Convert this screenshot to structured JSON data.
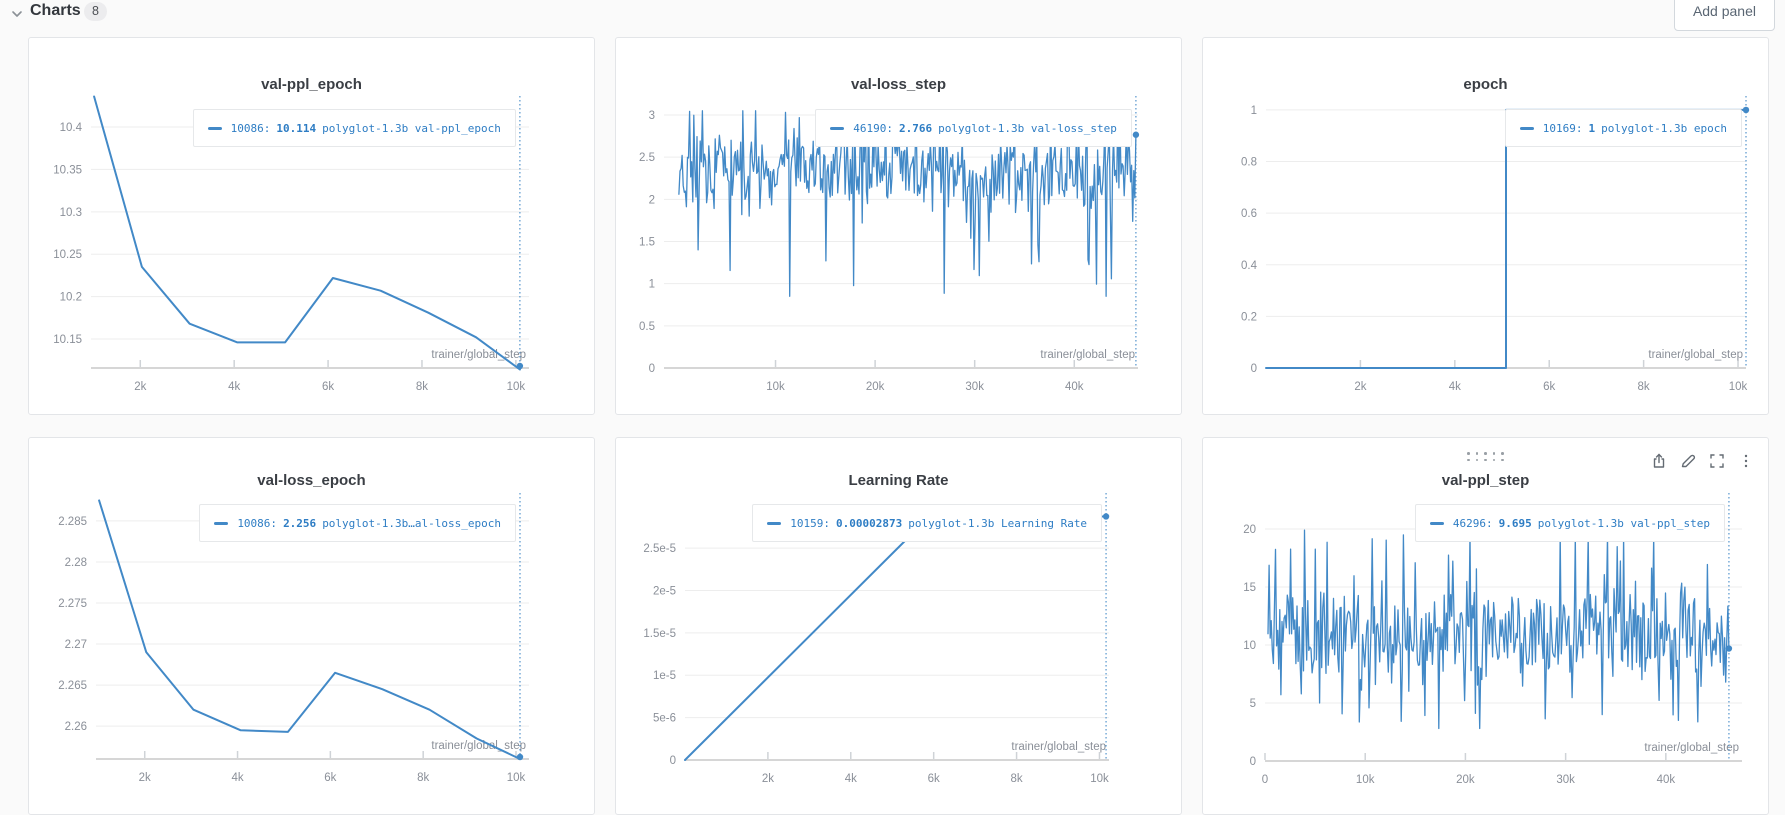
{
  "header": {
    "title": "Charts",
    "count": "8",
    "add_panel_label": "Add panel"
  },
  "colors": {
    "line_blue": "#4289c7",
    "legend_blue": "#2e7dc4",
    "tick_gray": "#8a8f98",
    "grid_gray": "#ededed",
    "axis_gray": "#d6d6d6",
    "page_bg": "#fafafa",
    "panel_bg": "#ffffff"
  },
  "chart_data": [
    {
      "type": "line",
      "title": "val-ppl_epoch",
      "xlabel": "trainer/global_step",
      "legend": {
        "step": "10086:",
        "value": "10.114",
        "run": "polyglot-1.3b val-ppl_epoch"
      },
      "x_range": [
        950,
        10280
      ],
      "y_range": [
        10.1158,
        10.4366
      ],
      "yticks": [
        {
          "v": 10.4,
          "label": "10.4"
        },
        {
          "v": 10.35,
          "label": "10.35"
        },
        {
          "v": 10.3,
          "label": "10.3"
        },
        {
          "v": 10.25,
          "label": "10.25"
        },
        {
          "v": 10.2,
          "label": "10.2"
        },
        {
          "v": 10.15,
          "label": "10.15"
        }
      ],
      "xticks": [
        {
          "v": 2000,
          "label": "2k"
        },
        {
          "v": 4000,
          "label": "4k"
        },
        {
          "v": 6000,
          "label": "6k"
        },
        {
          "v": 8000,
          "label": "8k"
        },
        {
          "v": 10000,
          "label": "10k"
        }
      ],
      "series": {
        "kind": "points",
        "points": [
          [
            1017,
            10.436
          ],
          [
            2034,
            10.235
          ],
          [
            3051,
            10.168
          ],
          [
            4068,
            10.146
          ],
          [
            5085,
            10.146
          ],
          [
            6102,
            10.222
          ],
          [
            7119,
            10.207
          ],
          [
            8136,
            10.181
          ],
          [
            9153,
            10.152
          ],
          [
            10086,
            10.114
          ]
        ]
      },
      "endpoint": {
        "x": 10086,
        "y": 10.114
      }
    },
    {
      "type": "line",
      "title": "val-loss_step",
      "xlabel": "trainer/global_step",
      "legend": {
        "step": "46190:",
        "value": "2.766",
        "run": "polyglot-1.3b val-loss_step"
      },
      "x_range": [
        -1200,
        46400
      ],
      "y_range": [
        0,
        3.225
      ],
      "yticks": [
        {
          "v": 3,
          "label": "3"
        },
        {
          "v": 2.5,
          "label": "2.5"
        },
        {
          "v": 2,
          "label": "2"
        },
        {
          "v": 1.5,
          "label": "1.5"
        },
        {
          "v": 1,
          "label": "1"
        },
        {
          "v": 0.5,
          "label": "0.5"
        },
        {
          "v": 0,
          "label": "0"
        }
      ],
      "xticks": [
        {
          "v": 10000,
          "label": "10k"
        },
        {
          "v": 20000,
          "label": "20k"
        },
        {
          "v": 30000,
          "label": "30k"
        },
        {
          "v": 40000,
          "label": "40k"
        }
      ],
      "series": {
        "kind": "noise",
        "seed": 7,
        "n": 430,
        "x0": 300,
        "x1": 46190,
        "base": 2.32,
        "amp": 0.5,
        "p_up": 0.1,
        "up": 0.55,
        "p_down": 0.07,
        "down": 1.2,
        "min": 0.85,
        "max": 3.05,
        "last": 2.766
      },
      "endpoint": {
        "x": 46190,
        "y": 2.766
      }
    },
    {
      "type": "line",
      "title": "epoch",
      "xlabel": "trainer/global_step",
      "legend": {
        "step": "10169:",
        "value": "1",
        "run": "polyglot-1.3b epoch"
      },
      "x_range": [
        0,
        10169
      ],
      "y_range": [
        0,
        1.054
      ],
      "yticks": [
        {
          "v": 1,
          "label": "1"
        },
        {
          "v": 0.8,
          "label": "0.8"
        },
        {
          "v": 0.6,
          "label": "0.6"
        },
        {
          "v": 0.4,
          "label": "0.4"
        },
        {
          "v": 0.2,
          "label": "0.2"
        },
        {
          "v": 0,
          "label": "0"
        }
      ],
      "xticks": [
        {
          "v": 2000,
          "label": "2k"
        },
        {
          "v": 4000,
          "label": "4k"
        },
        {
          "v": 6000,
          "label": "6k"
        },
        {
          "v": 8000,
          "label": "8k"
        },
        {
          "v": 10000,
          "label": "10k"
        }
      ],
      "series": {
        "kind": "points",
        "points": [
          [
            0,
            0
          ],
          [
            5084,
            0
          ],
          [
            5084,
            1
          ],
          [
            10169,
            1
          ]
        ]
      },
      "endpoint": {
        "x": 10169,
        "y": 1
      }
    },
    {
      "type": "line",
      "title": "val-loss_epoch",
      "xlabel": "trainer/global_step",
      "legend": {
        "step": "10086:",
        "value": "2.256",
        "run": "polyglot-1.3b…al-loss_epoch"
      },
      "x_range": [
        950,
        10280
      ],
      "y_range": [
        2.256,
        2.2884
      ],
      "yticks": [
        {
          "v": 2.285,
          "label": "2.285"
        },
        {
          "v": 2.28,
          "label": "2.28"
        },
        {
          "v": 2.275,
          "label": "2.275"
        },
        {
          "v": 2.27,
          "label": "2.27"
        },
        {
          "v": 2.265,
          "label": "2.265"
        },
        {
          "v": 2.26,
          "label": "2.26"
        }
      ],
      "xticks": [
        {
          "v": 2000,
          "label": "2k"
        },
        {
          "v": 4000,
          "label": "4k"
        },
        {
          "v": 6000,
          "label": "6k"
        },
        {
          "v": 8000,
          "label": "8k"
        },
        {
          "v": 10000,
          "label": "10k"
        }
      ],
      "series": {
        "kind": "points",
        "points": [
          [
            1017,
            2.2875
          ],
          [
            2034,
            2.269
          ],
          [
            3051,
            2.262
          ],
          [
            4068,
            2.2595
          ],
          [
            5085,
            2.2593
          ],
          [
            6102,
            2.2665
          ],
          [
            7119,
            2.2645
          ],
          [
            8136,
            2.262
          ],
          [
            9153,
            2.2585
          ],
          [
            10086,
            2.256
          ]
        ]
      },
      "endpoint": {
        "x": 10086,
        "y": 2.256
      }
    },
    {
      "type": "line",
      "title": "Learning Rate",
      "xlabel": "trainer/global_step",
      "legend": {
        "step": "10159:",
        "value": "0.00002873",
        "run": "polyglot-1.3b Learning Rate"
      },
      "x_range": [
        0,
        10230
      ],
      "y_range": [
        0,
        3.15e-05
      ],
      "yticks": [
        {
          "v": 2.5e-05,
          "label": "2.5e-5"
        },
        {
          "v": 2e-05,
          "label": "2e-5"
        },
        {
          "v": 1.5e-05,
          "label": "1.5e-5"
        },
        {
          "v": 1e-05,
          "label": "1e-5"
        },
        {
          "v": 5e-06,
          "label": "5e-6"
        },
        {
          "v": 0,
          "label": "0"
        }
      ],
      "xticks": [
        {
          "v": 2000,
          "label": "2k"
        },
        {
          "v": 4000,
          "label": "4k"
        },
        {
          "v": 6000,
          "label": "6k"
        },
        {
          "v": 8000,
          "label": "8k"
        },
        {
          "v": 10000,
          "label": "10k"
        }
      ],
      "series": {
        "kind": "points",
        "points": [
          [
            0,
            0
          ],
          [
            5900,
            2.873e-05
          ],
          [
            10159,
            2.873e-05
          ]
        ]
      },
      "endpoint": {
        "x": 10159,
        "y": 2.873e-05
      }
    },
    {
      "type": "line",
      "title": "val-ppl_step",
      "xlabel": "trainer/global_step",
      "legend": {
        "step": "46296:",
        "value": "9.695",
        "run": "polyglot-1.3b val-ppl_step"
      },
      "x_range": [
        0,
        47600
      ],
      "y_range": [
        0,
        23.1
      ],
      "yticks": [
        {
          "v": 20,
          "label": "20"
        },
        {
          "v": 15,
          "label": "15"
        },
        {
          "v": 10,
          "label": "10"
        },
        {
          "v": 5,
          "label": "5"
        },
        {
          "v": 0,
          "label": "0"
        }
      ],
      "xticks": [
        {
          "v": 0,
          "label": "0"
        },
        {
          "v": 10000,
          "label": "10k"
        },
        {
          "v": 20000,
          "label": "20k"
        },
        {
          "v": 30000,
          "label": "30k"
        },
        {
          "v": 40000,
          "label": "40k"
        }
      ],
      "series": {
        "kind": "noise",
        "seed": 11,
        "n": 430,
        "x0": 300,
        "x1": 46296,
        "base": 10.9,
        "amp": 4.2,
        "p_up": 0.09,
        "up": 6.5,
        "p_down": 0.07,
        "down": 6.0,
        "min": 2.8,
        "max": 20.9,
        "last": 9.695
      },
      "endpoint": {
        "x": 46296,
        "y": 9.695
      },
      "controls": {
        "icons": [
          "export-icon",
          "edit-pencil-icon",
          "fullscreen-icon",
          "kebab-menu-icon"
        ]
      }
    }
  ]
}
